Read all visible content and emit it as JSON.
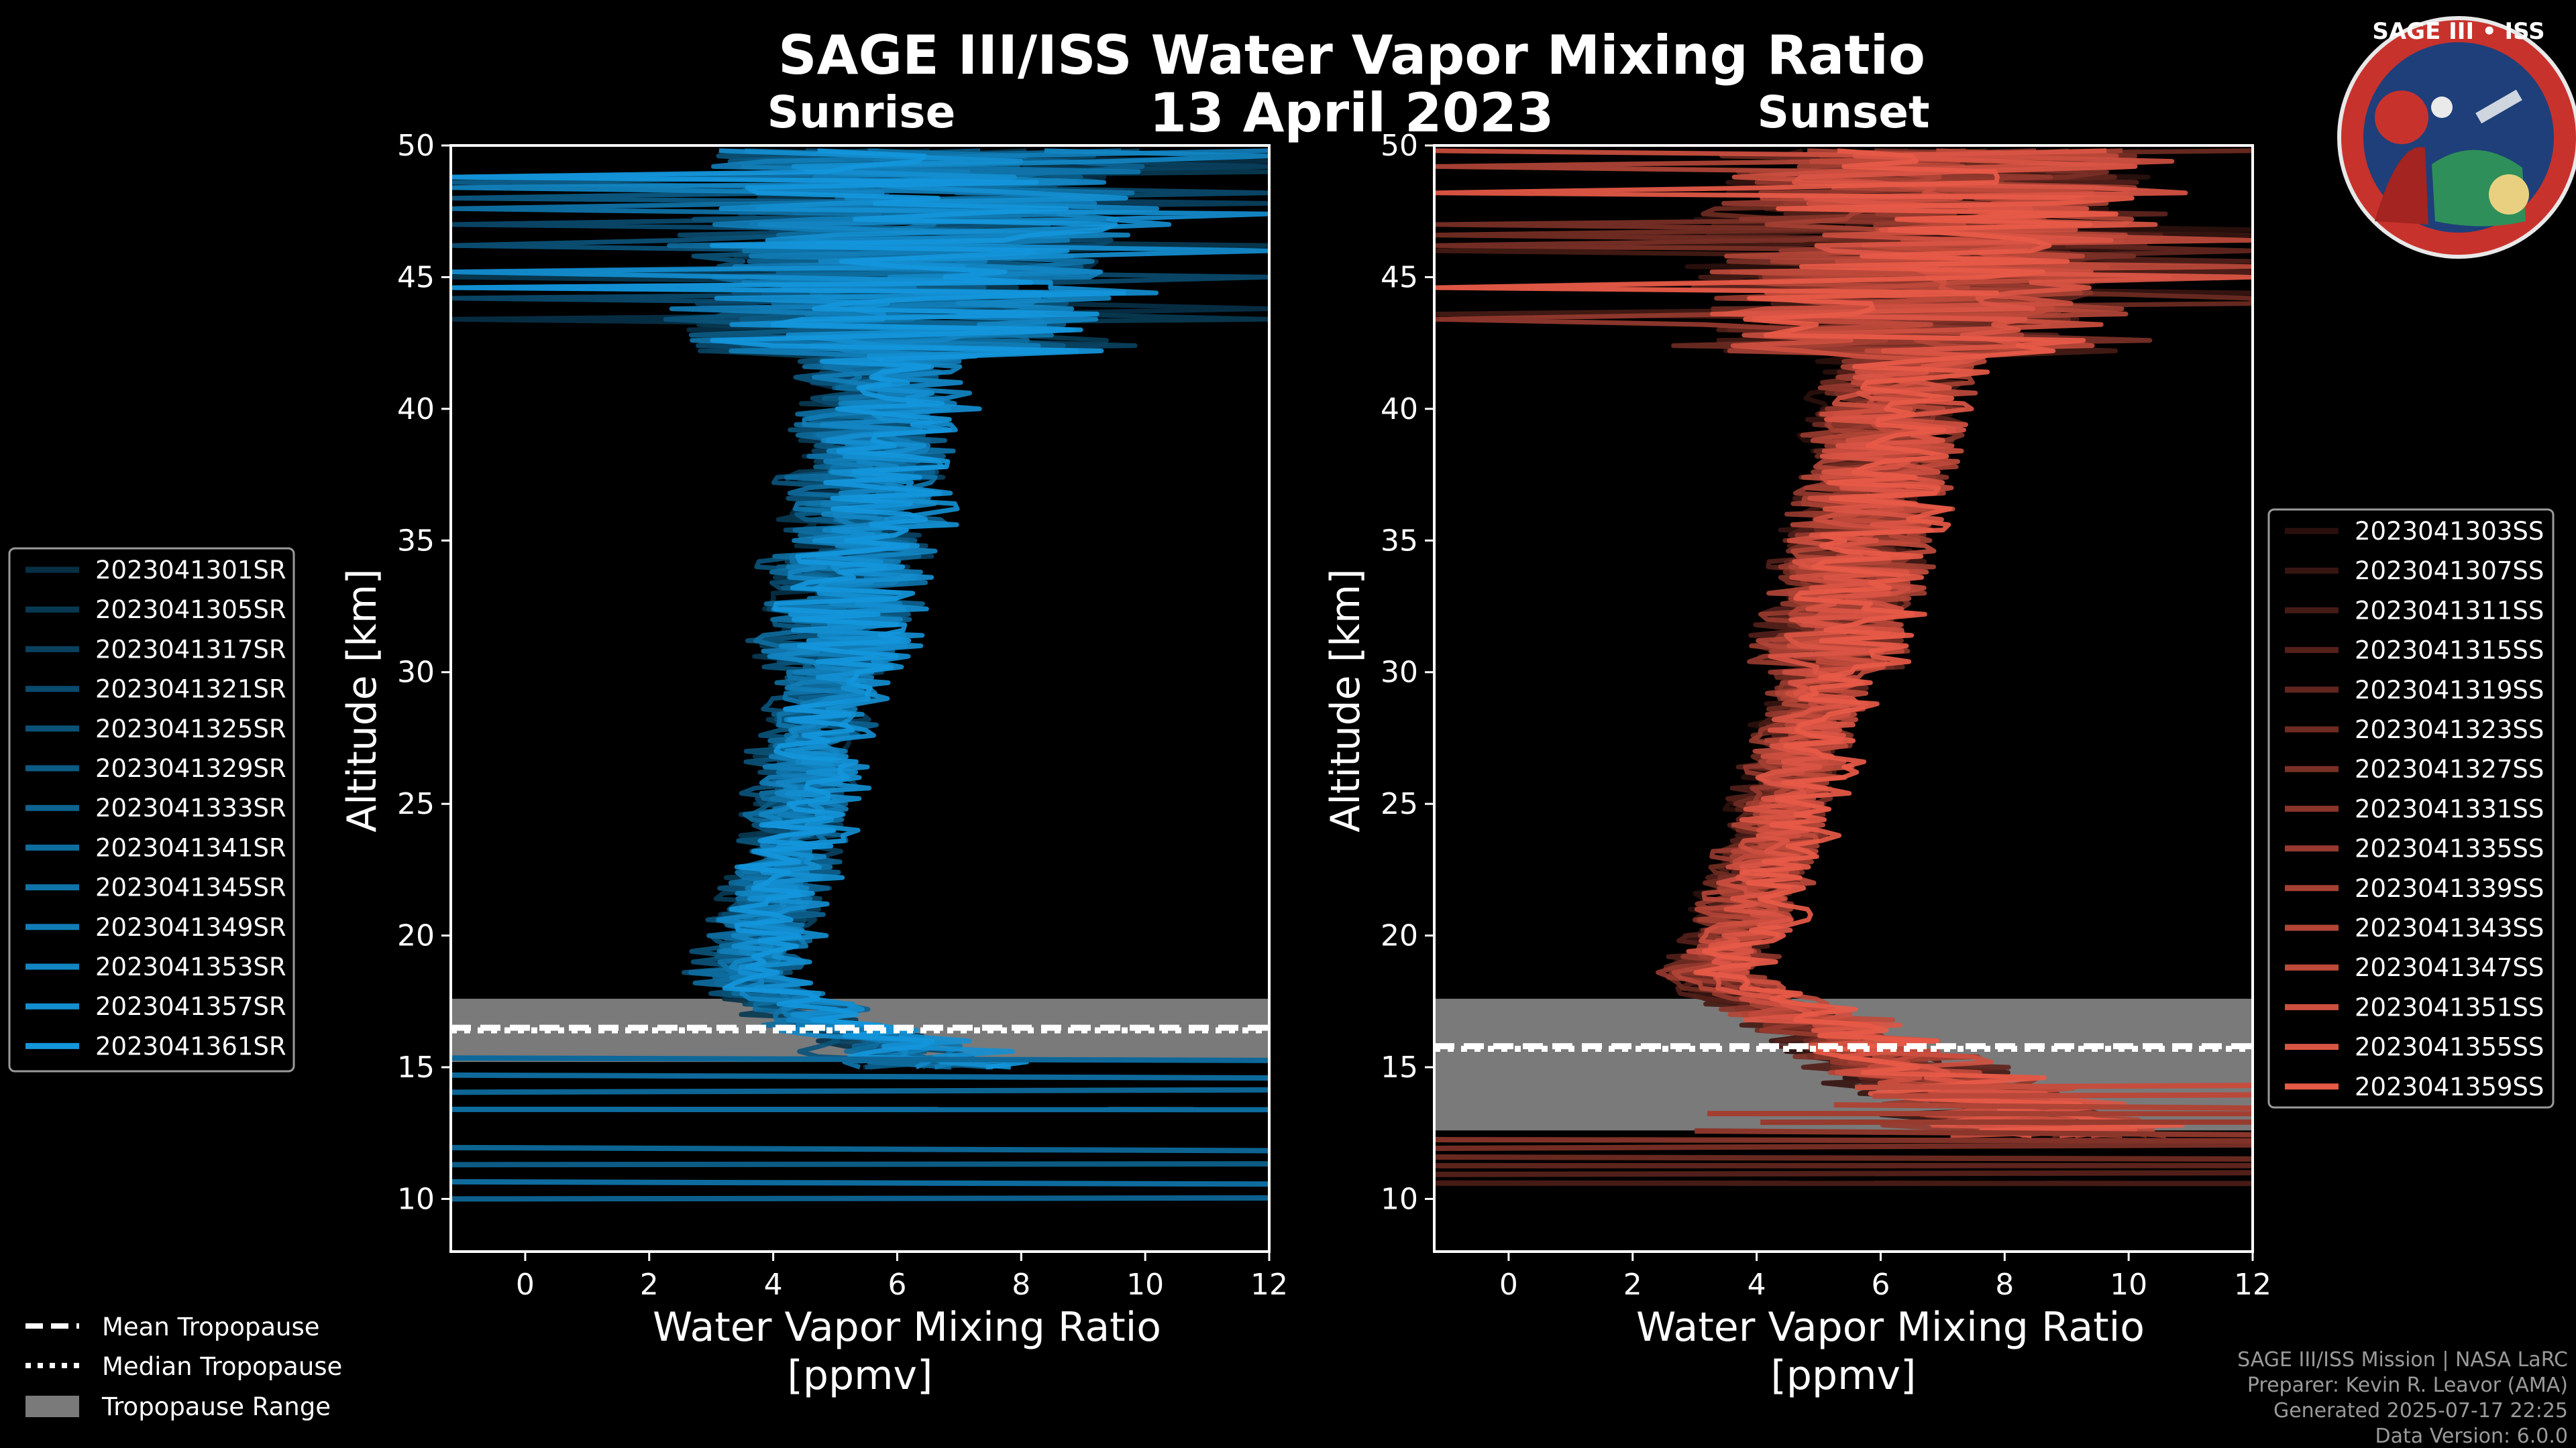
{
  "title": "SAGE III/ISS Water Vapor Mixing Ratio",
  "date": "13 April 2023",
  "logo": {
    "text": "SAGE III • ISS"
  },
  "credits": {
    "line1": "SAGE III/ISS Mission | NASA LaRC",
    "line2": "Preparer: Kevin R. Leavor (AMA)",
    "line3": "Generated 2025-07-17 22:25",
    "line4": "Data Version: 6.0.0"
  },
  "tropopause_legend": {
    "mean": "Mean Tropopause",
    "median": "Median Tropopause",
    "range": "Tropopause Range"
  },
  "colors": {
    "sunrise": "#1496dc",
    "sunset": "#e85a48",
    "tropopause_range": "#7a7a7a"
  },
  "chart_data": [
    {
      "type": "line",
      "panel": "sunrise",
      "title": "Sunrise",
      "xlabel": "Water Vapor Mixing Ratio\n[ppmv]",
      "xlabel_line1": "Water Vapor Mixing Ratio",
      "xlabel_line2": "[ppmv]",
      "ylabel": "Altitude [km]",
      "xlim": [
        -1.2,
        12
      ],
      "ylim": [
        8,
        50
      ],
      "xticks": [
        0,
        2,
        4,
        6,
        8,
        10,
        12
      ],
      "yticks": [
        10,
        15,
        20,
        25,
        30,
        35,
        40,
        45,
        50
      ],
      "tropopause": {
        "mean": 16.5,
        "median": 16.4,
        "range": [
          15.2,
          17.6
        ]
      },
      "legend_position": "outside-left",
      "series": [
        {
          "name": "2023041301SR",
          "mean_min_ppmv": 3.4,
          "mean_max_ppmv": 6.3
        },
        {
          "name": "2023041305SR",
          "mean_min_ppmv": 3.3,
          "mean_max_ppmv": 6.2
        },
        {
          "name": "2023041317SR",
          "mean_min_ppmv": 3.6,
          "mean_max_ppmv": 6.6
        },
        {
          "name": "2023041321SR",
          "mean_min_ppmv": 3.5,
          "mean_max_ppmv": 6.4
        },
        {
          "name": "2023041325SR",
          "mean_min_ppmv": 3.2,
          "mean_max_ppmv": 6.1
        },
        {
          "name": "2023041329SR",
          "mean_min_ppmv": 3.4,
          "mean_max_ppmv": 6.5
        },
        {
          "name": "2023041333SR",
          "mean_min_ppmv": 3.7,
          "mean_max_ppmv": 6.7
        },
        {
          "name": "2023041341SR",
          "mean_min_ppmv": 3.3,
          "mean_max_ppmv": 6.3
        },
        {
          "name": "2023041345SR",
          "mean_min_ppmv": 3.5,
          "mean_max_ppmv": 6.6
        },
        {
          "name": "2023041349SR",
          "mean_min_ppmv": 3.6,
          "mean_max_ppmv": 6.4
        },
        {
          "name": "2023041353SR",
          "mean_min_ppmv": 3.4,
          "mean_max_ppmv": 6.8
        },
        {
          "name": "2023041357SR",
          "mean_min_ppmv": 3.8,
          "mean_max_ppmv": 6.9
        },
        {
          "name": "2023041361SR",
          "mean_min_ppmv": 3.5,
          "mean_max_ppmv": 6.6
        }
      ]
    },
    {
      "type": "line",
      "panel": "sunset",
      "title": "Sunset",
      "xlabel": "Water Vapor Mixing Ratio\n[ppmv]",
      "xlabel_line1": "Water Vapor Mixing Ratio",
      "xlabel_line2": "[ppmv]",
      "ylabel": "Altitude [km]",
      "xlim": [
        -1.2,
        12
      ],
      "ylim": [
        8,
        50
      ],
      "xticks": [
        0,
        2,
        4,
        6,
        8,
        10,
        12
      ],
      "yticks": [
        10,
        15,
        20,
        25,
        30,
        35,
        40,
        45,
        50
      ],
      "tropopause": {
        "mean": 15.8,
        "median": 15.7,
        "range": [
          12.6,
          17.6
        ]
      },
      "legend_position": "outside-right",
      "series": [
        {
          "name": "2023041303SS",
          "mean_min_ppmv": 3.0,
          "mean_max_ppmv": 6.9
        },
        {
          "name": "2023041307SS",
          "mean_min_ppmv": 3.1,
          "mean_max_ppmv": 7.0
        },
        {
          "name": "2023041311SS",
          "mean_min_ppmv": 3.2,
          "mean_max_ppmv": 7.1
        },
        {
          "name": "2023041315SS",
          "mean_min_ppmv": 3.0,
          "mean_max_ppmv": 7.0
        },
        {
          "name": "2023041319SS",
          "mean_min_ppmv": 3.3,
          "mean_max_ppmv": 7.2
        },
        {
          "name": "2023041323SS",
          "mean_min_ppmv": 3.1,
          "mean_max_ppmv": 7.1
        },
        {
          "name": "2023041327SS",
          "mean_min_ppmv": 3.2,
          "mean_max_ppmv": 7.3
        },
        {
          "name": "2023041331SS",
          "mean_min_ppmv": 3.4,
          "mean_max_ppmv": 7.2
        },
        {
          "name": "2023041335SS",
          "mean_min_ppmv": 3.1,
          "mean_max_ppmv": 7.0
        },
        {
          "name": "2023041339SS",
          "mean_min_ppmv": 3.3,
          "mean_max_ppmv": 7.3
        },
        {
          "name": "2023041343SS",
          "mean_min_ppmv": 3.2,
          "mean_max_ppmv": 7.1
        },
        {
          "name": "2023041347SS",
          "mean_min_ppmv": 3.5,
          "mean_max_ppmv": 7.4
        },
        {
          "name": "2023041351SS",
          "mean_min_ppmv": 3.3,
          "mean_max_ppmv": 7.2
        },
        {
          "name": "2023041355SS",
          "mean_min_ppmv": 3.4,
          "mean_max_ppmv": 7.3
        },
        {
          "name": "2023041359SS",
          "mean_min_ppmv": 3.6,
          "mean_max_ppmv": 7.5
        }
      ]
    }
  ]
}
